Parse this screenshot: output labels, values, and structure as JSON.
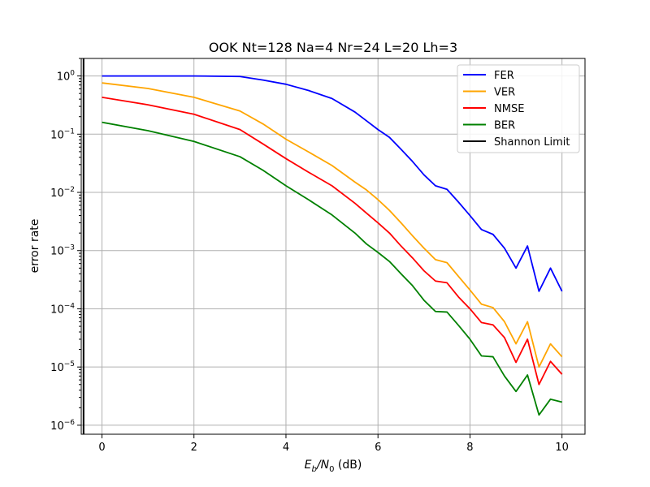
{
  "chart_data": {
    "type": "line",
    "title": "OOK Nt=128 Na=4 Nr=24 L=20 Lh=3",
    "xlabel": "$E_b/N_0$ (dB)",
    "xlabel_parts": {
      "E": "E",
      "b": "b",
      "slash": "/N",
      "zero": "0",
      "unit": " (dB)"
    },
    "ylabel": "error rate",
    "xlim": [
      -0.45,
      10.5
    ],
    "ylim": [
      7e-07,
      2.0
    ],
    "yscale": "log",
    "grid": true,
    "legend_position": "upper right",
    "x_ticks": [
      0,
      2,
      4,
      6,
      8,
      10
    ],
    "x_tick_labels": [
      "0",
      "2",
      "4",
      "6",
      "8",
      "10"
    ],
    "y_ticks": [
      1,
      0.1,
      0.01,
      0.001,
      0.0001,
      1e-05,
      1e-06
    ],
    "y_tick_labels": [
      {
        "base": "10",
        "exp": "0"
      },
      {
        "base": "10",
        "exp": "−1"
      },
      {
        "base": "10",
        "exp": "−2"
      },
      {
        "base": "10",
        "exp": "−3"
      },
      {
        "base": "10",
        "exp": "−4"
      },
      {
        "base": "10",
        "exp": "−5"
      },
      {
        "base": "10",
        "exp": "−6"
      }
    ],
    "series": [
      {
        "name": "FER",
        "color": "#0000ff",
        "x": [
          0,
          1,
          2,
          3,
          3.5,
          4,
          4.5,
          5,
          5.5,
          5.75,
          6,
          6.25,
          6.5,
          6.75,
          7,
          7.25,
          7.5,
          7.75,
          8,
          8.25,
          8.5,
          8.75,
          9,
          9.25,
          9.5,
          9.75,
          10
        ],
        "y": [
          1,
          1,
          1,
          0.98,
          0.85,
          0.72,
          0.56,
          0.41,
          0.24,
          0.17,
          0.12,
          0.088,
          0.055,
          0.034,
          0.02,
          0.013,
          0.0113,
          0.0068,
          0.004,
          0.0023,
          0.0019,
          0.0011,
          0.0005,
          0.0012,
          0.0002,
          0.0005,
          0.0002
        ]
      },
      {
        "name": "VER",
        "color": "#ffa500",
        "x": [
          0,
          1,
          2,
          3,
          3.5,
          4,
          4.5,
          5,
          5.5,
          5.75,
          6,
          6.25,
          6.5,
          6.75,
          7,
          7.25,
          7.5,
          7.75,
          8,
          8.25,
          8.5,
          8.75,
          9,
          9.25,
          9.5,
          9.75,
          10
        ],
        "y": [
          0.76,
          0.61,
          0.43,
          0.25,
          0.15,
          0.082,
          0.049,
          0.029,
          0.015,
          0.011,
          0.0075,
          0.0049,
          0.003,
          0.0018,
          0.0011,
          0.0007,
          0.00062,
          0.00036,
          0.00021,
          0.00012,
          0.000105,
          6e-05,
          2.5e-05,
          6e-05,
          1e-05,
          2.5e-05,
          1.5e-05
        ]
      },
      {
        "name": "NMSE",
        "color": "#ff0000",
        "x": [
          0,
          1,
          2,
          3,
          3.5,
          4,
          4.5,
          5,
          5.5,
          5.75,
          6,
          6.25,
          6.5,
          6.75,
          7,
          7.25,
          7.5,
          7.75,
          8,
          8.25,
          8.5,
          8.75,
          9,
          9.25,
          9.5,
          9.75,
          10
        ],
        "y": [
          0.43,
          0.32,
          0.22,
          0.12,
          0.068,
          0.038,
          0.022,
          0.013,
          0.0065,
          0.0044,
          0.003,
          0.002,
          0.0012,
          0.00075,
          0.00045,
          0.0003,
          0.00028,
          0.00016,
          0.0001,
          5.8e-05,
          5.3e-05,
          3.2e-05,
          1.2e-05,
          3e-05,
          5e-06,
          1.25e-05,
          7.5e-06
        ]
      },
      {
        "name": "BER",
        "color": "#008000",
        "x": [
          0,
          1,
          2,
          3,
          3.5,
          4,
          4.5,
          5,
          5.5,
          5.75,
          6,
          6.25,
          6.5,
          6.75,
          7,
          7.25,
          7.5,
          7.75,
          8,
          8.25,
          8.5,
          8.75,
          9,
          9.25,
          9.5,
          9.75,
          10
        ],
        "y": [
          0.16,
          0.115,
          0.075,
          0.041,
          0.024,
          0.013,
          0.0074,
          0.0041,
          0.002,
          0.0013,
          0.00093,
          0.00065,
          0.0004,
          0.00025,
          0.00014,
          9e-05,
          8.8e-05,
          5.2e-05,
          3e-05,
          1.55e-05,
          1.5e-05,
          7e-06,
          3.8e-06,
          7.3e-06,
          1.5e-06,
          2.8e-06,
          2.5e-06
        ]
      },
      {
        "name": "Shannon Limit",
        "color": "#000000",
        "kind": "vline",
        "x_value": -0.4
      }
    ]
  }
}
